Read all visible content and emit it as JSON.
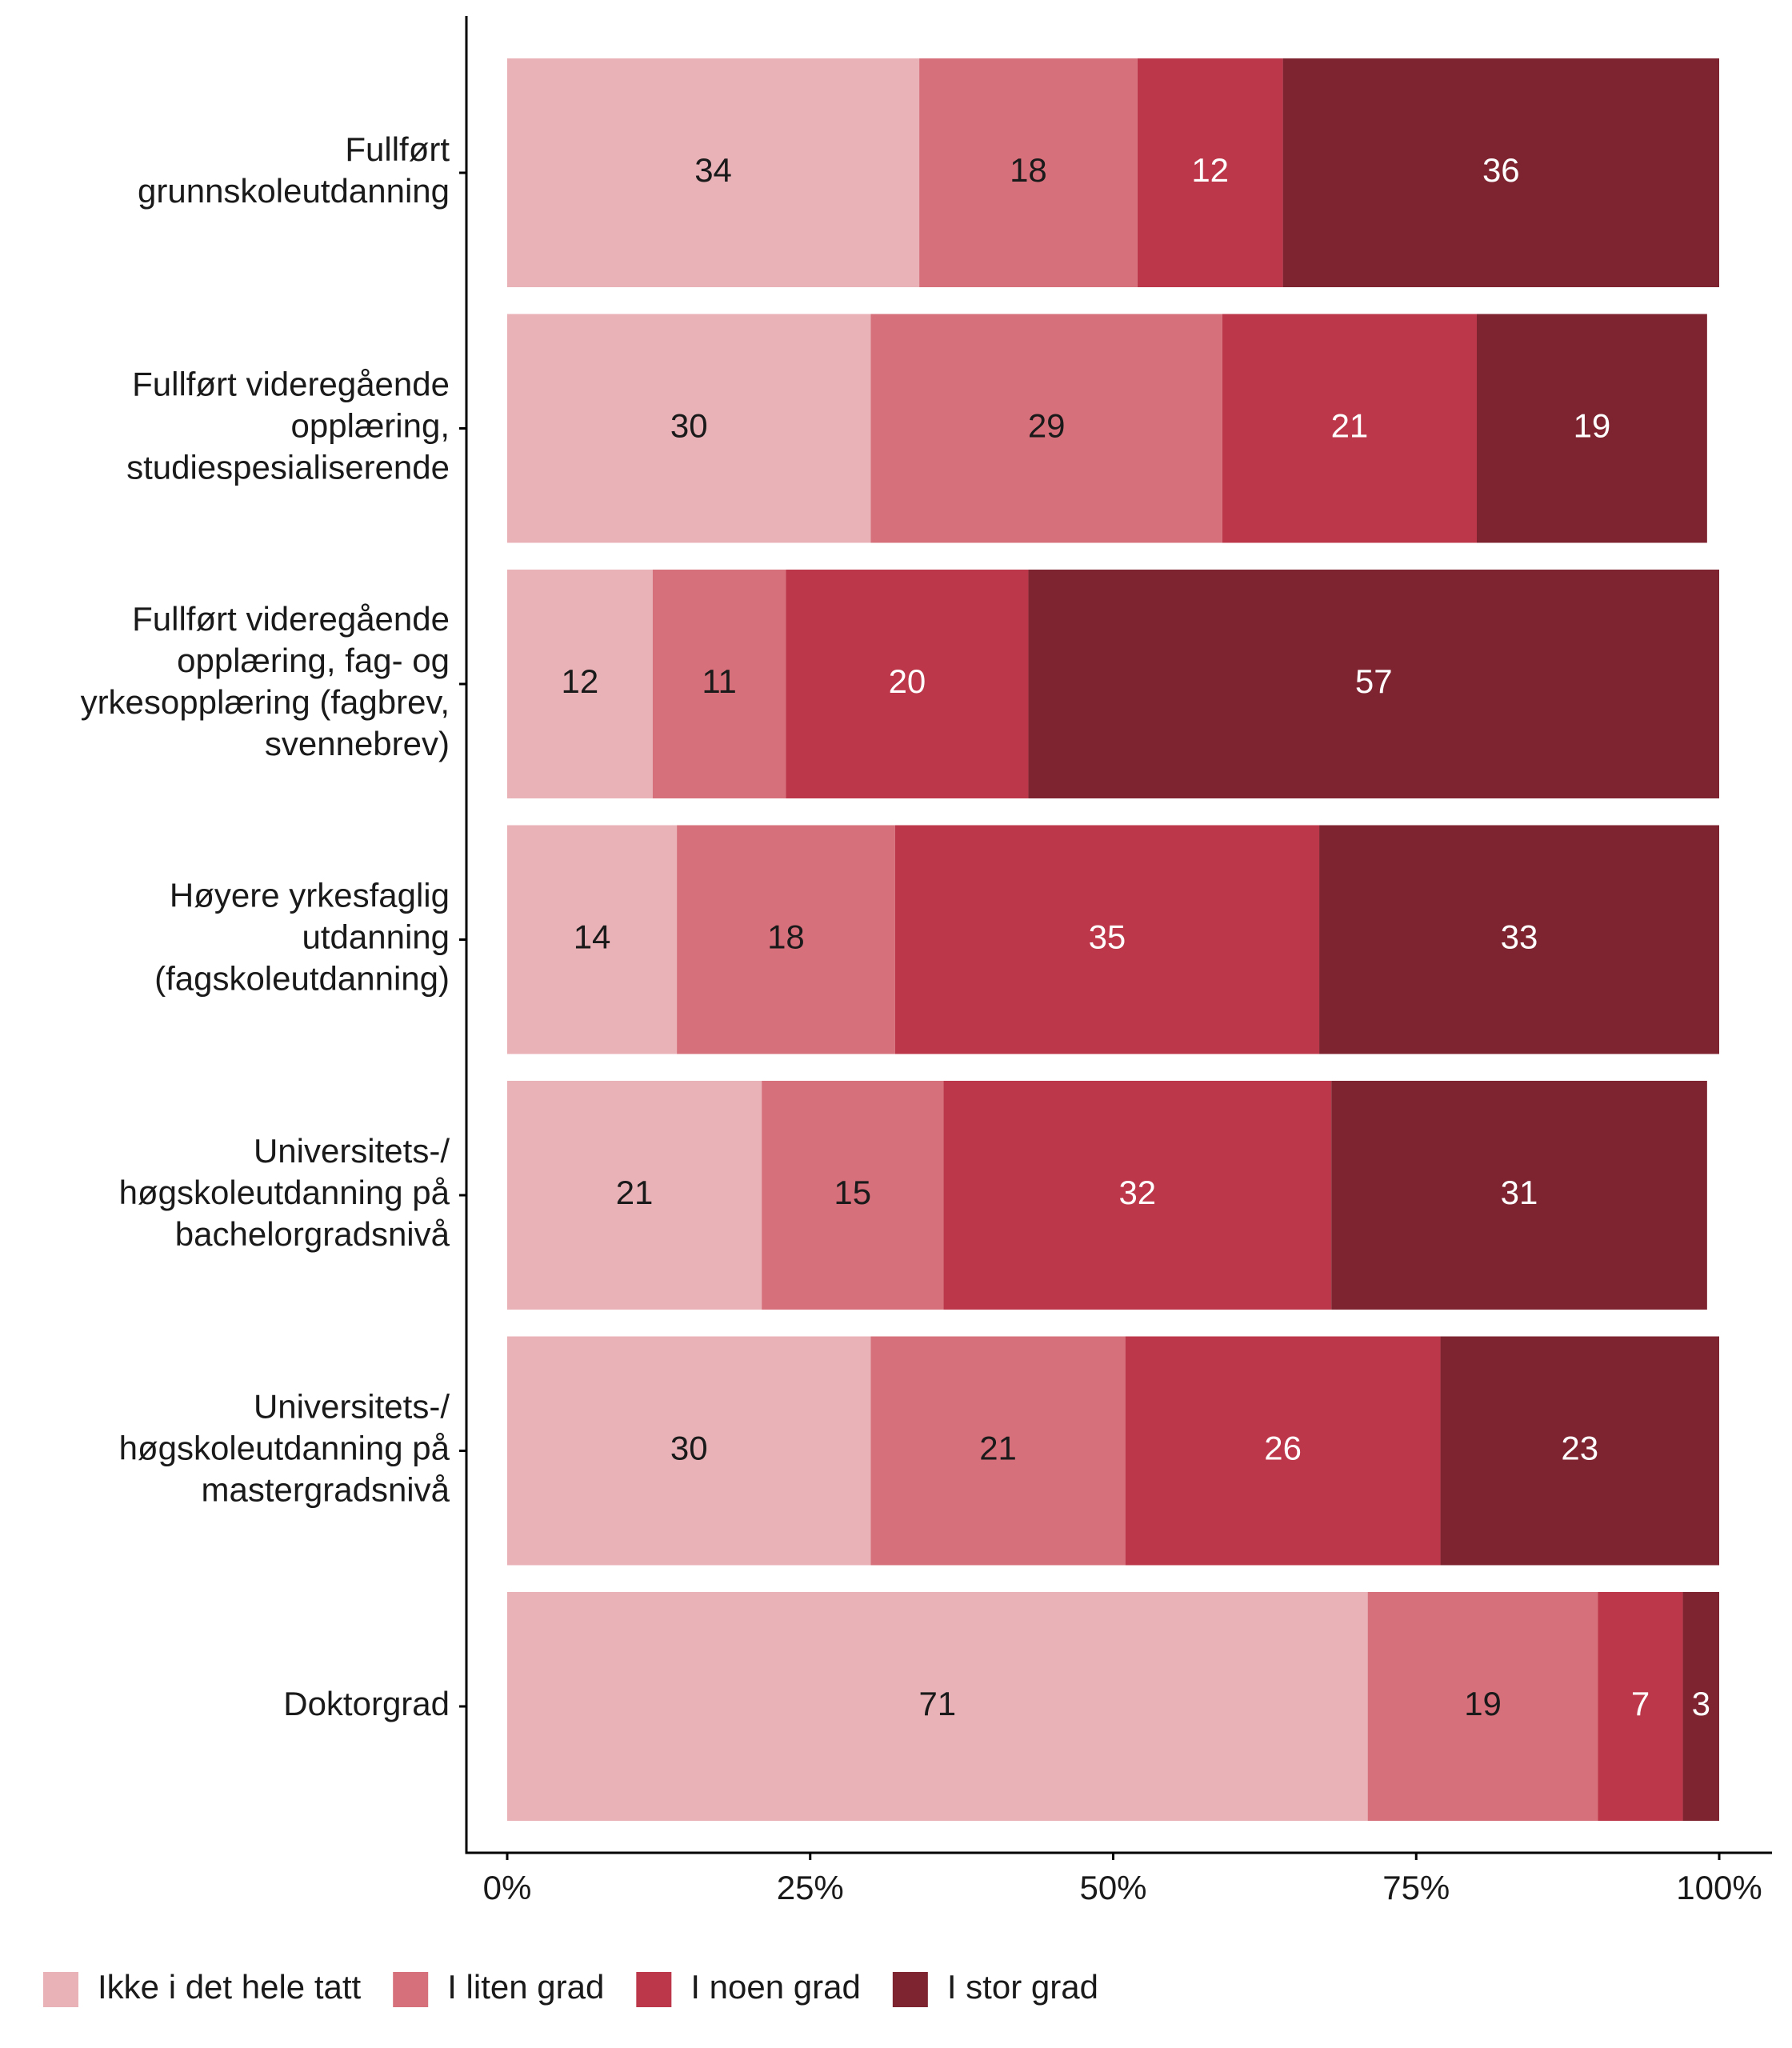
{
  "chart_data": {
    "type": "stacked_barh",
    "categories": [
      "Fullført\ngrunnskoleutdanning",
      "Fullført videregående\nopplæring,\nstudiespesialiserende",
      "Fullført videregående\nopplæring, fag- og\nyrkesopplæring (fagbrev,\nsvennebrev)",
      "Høyere yrkesfaglig\nutdanning\n(fagskoleutdanning)",
      "Universitets-/\nhøgskoleutdanning på\nbachelorgradsnivå",
      "Universitets-/\nhøgskoleutdanning på\nmastergradsnivå",
      "Doktorgrad"
    ],
    "series": [
      {
        "name": "Ikke i det hele tatt",
        "color": "#e8b2b7",
        "values": [
          34,
          30,
          12,
          14,
          21,
          30,
          71
        ]
      },
      {
        "name": "I liten grad",
        "color": "#d6707b",
        "values": [
          18,
          29,
          11,
          18,
          15,
          21,
          19
        ]
      },
      {
        "name": "I noen grad",
        "color": "#bd374a",
        "values": [
          12,
          21,
          20,
          35,
          32,
          26,
          7
        ]
      },
      {
        "name": "I stor grad",
        "color": "#7e2430",
        "values": [
          36,
          19,
          57,
          33,
          31,
          23,
          3
        ]
      }
    ],
    "xlim": [
      0,
      100
    ],
    "xticks": [
      {
        "value": 0,
        "label": "0%"
      },
      {
        "value": 25,
        "label": "25%"
      },
      {
        "value": 50,
        "label": "50%"
      },
      {
        "value": 75,
        "label": "75%"
      },
      {
        "value": 100,
        "label": "100%"
      }
    ],
    "legend": "bottom"
  }
}
